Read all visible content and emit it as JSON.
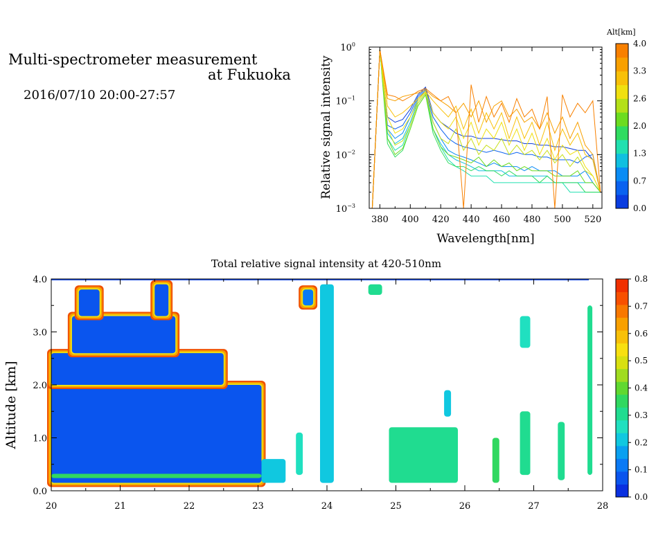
{
  "header": {
    "title_line1": "Multi-spectrometer measurement",
    "title_line2": "at Fukuoka",
    "subtitle": "2016/07/10 20:00-27:57"
  },
  "chart_data": [
    {
      "type": "line",
      "title": "",
      "xlabel": "Wavelength[nm]",
      "ylabel": "Relative signal intensity",
      "xlim": [
        373,
        526
      ],
      "ylim": [
        0.001,
        1
      ],
      "yscale": "log",
      "x_ticks": [
        380,
        400,
        420,
        440,
        460,
        480,
        500,
        520
      ],
      "y_tick_labels": [
        {
          "base": "10",
          "exp": "0",
          "value": 1
        },
        {
          "base": "10",
          "exp": "−1",
          "value": 0.1
        },
        {
          "base": "10",
          "exp": "−2",
          "value": 0.01
        },
        {
          "base": "10",
          "exp": "−3",
          "value": 0.001
        }
      ],
      "colorbar": {
        "label": "Alt[km]",
        "ticks": [
          "0.0",
          "0.7",
          "1.3",
          "2.0",
          "2.6",
          "3.3",
          "4.0"
        ],
        "colors": [
          "#0a3de0",
          "#0a62f0",
          "#0a8cf5",
          "#10bfe0",
          "#20e0b0",
          "#30dc60",
          "#6cdc20",
          "#b4e018",
          "#f0e010",
          "#f8c008",
          "#f8a000",
          "#f88000"
        ]
      },
      "x": [
        375,
        380,
        385,
        390,
        395,
        400,
        405,
        410,
        415,
        420,
        425,
        430,
        435,
        440,
        445,
        450,
        455,
        460,
        465,
        470,
        475,
        480,
        485,
        490,
        495,
        500,
        505,
        510,
        515,
        520,
        525
      ],
      "series": [
        {
          "altitude_km": 0.3,
          "color": "#1040d8",
          "values": [
            0.001,
            0.9,
            0.05,
            0.04,
            0.045,
            0.07,
            0.13,
            0.18,
            0.06,
            0.04,
            0.032,
            0.025,
            0.022,
            0.022,
            0.02,
            0.02,
            0.02,
            0.019,
            0.018,
            0.018,
            0.016,
            0.016,
            0.015,
            0.015,
            0.014,
            0.014,
            0.013,
            0.012,
            0.012,
            0.008,
            0.002
          ]
        },
        {
          "altitude_km": 0.5,
          "color": "#0a62f0",
          "values": [
            0.001,
            0.9,
            0.035,
            0.03,
            0.035,
            0.06,
            0.12,
            0.17,
            0.05,
            0.03,
            0.02,
            0.016,
            0.014,
            0.013,
            0.012,
            0.011,
            0.012,
            0.011,
            0.01,
            0.011,
            0.01,
            0.01,
            0.009,
            0.009,
            0.008,
            0.008,
            0.008,
            0.007,
            0.009,
            0.01,
            0.002
          ]
        },
        {
          "altitude_km": 0.8,
          "color": "#0a8cf5",
          "values": [
            0.001,
            0.9,
            0.03,
            0.02,
            0.025,
            0.05,
            0.11,
            0.16,
            0.04,
            0.02,
            0.012,
            0.01,
            0.009,
            0.008,
            0.007,
            0.006,
            0.007,
            0.006,
            0.006,
            0.006,
            0.005,
            0.006,
            0.005,
            0.005,
            0.005,
            0.004,
            0.004,
            0.004,
            0.005,
            0.003,
            0.002
          ]
        },
        {
          "altitude_km": 1.1,
          "color": "#10bfe0",
          "values": [
            0.001,
            0.9,
            0.025,
            0.016,
            0.02,
            0.04,
            0.1,
            0.15,
            0.03,
            0.016,
            0.01,
            0.008,
            0.007,
            0.006,
            0.005,
            0.005,
            0.005,
            0.005,
            0.004,
            0.004,
            0.004,
            0.004,
            0.004,
            0.004,
            0.003,
            0.003,
            0.003,
            0.003,
            0.003,
            0.003,
            0.002
          ]
        },
        {
          "altitude_km": 1.4,
          "color": "#20e0b0",
          "values": [
            0.001,
            0.9,
            0.02,
            0.012,
            0.015,
            0.035,
            0.09,
            0.14,
            0.03,
            0.014,
            0.008,
            0.006,
            0.005,
            0.004,
            0.004,
            0.004,
            0.003,
            0.003,
            0.003,
            0.003,
            0.003,
            0.003,
            0.003,
            0.003,
            0.003,
            0.003,
            0.002,
            0.002,
            0.002,
            0.002,
            0.002
          ]
        },
        {
          "altitude_km": 1.7,
          "color": "#30dc60",
          "values": [
            0.001,
            0.9,
            0.016,
            0.009,
            0.012,
            0.03,
            0.08,
            0.13,
            0.025,
            0.012,
            0.007,
            0.006,
            0.006,
            0.005,
            0.006,
            0.005,
            0.005,
            0.004,
            0.005,
            0.004,
            0.004,
            0.004,
            0.003,
            0.004,
            0.003,
            0.003,
            0.003,
            0.003,
            0.002,
            0.002,
            0.002
          ]
        },
        {
          "altitude_km": 2.1,
          "color": "#6cdc20",
          "values": [
            0.001,
            0.9,
            0.02,
            0.01,
            0.013,
            0.03,
            0.08,
            0.13,
            0.03,
            0.014,
            0.01,
            0.009,
            0.008,
            0.007,
            0.009,
            0.006,
            0.008,
            0.006,
            0.007,
            0.005,
            0.006,
            0.005,
            0.005,
            0.005,
            0.004,
            0.004,
            0.004,
            0.005,
            0.003,
            0.003,
            0.002
          ]
        },
        {
          "altitude_km": 2.5,
          "color": "#c8e018",
          "values": [
            0.001,
            0.9,
            0.03,
            0.015,
            0.018,
            0.035,
            0.09,
            0.14,
            0.04,
            0.02,
            0.016,
            0.03,
            0.012,
            0.02,
            0.01,
            0.015,
            0.012,
            0.02,
            0.01,
            0.015,
            0.01,
            0.012,
            0.008,
            0.012,
            0.007,
            0.01,
            0.006,
            0.009,
            0.005,
            0.004,
            0.002
          ]
        },
        {
          "altitude_km": 2.9,
          "color": "#f0e010",
          "values": [
            0.001,
            0.9,
            0.05,
            0.025,
            0.03,
            0.05,
            0.1,
            0.15,
            0.06,
            0.04,
            0.03,
            0.05,
            0.02,
            0.04,
            0.015,
            0.03,
            0.02,
            0.04,
            0.015,
            0.03,
            0.012,
            0.025,
            0.01,
            0.02,
            0.008,
            0.015,
            0.01,
            0.012,
            0.006,
            0.004,
            0.002
          ]
        },
        {
          "altitude_km": 3.3,
          "color": "#f8c008",
          "values": [
            0.001,
            0.9,
            0.08,
            0.05,
            0.06,
            0.08,
            0.11,
            0.15,
            0.1,
            0.07,
            0.05,
            0.08,
            0.03,
            0.07,
            0.025,
            0.06,
            0.03,
            0.06,
            0.02,
            0.05,
            0.02,
            0.04,
            0.015,
            0.04,
            0.012,
            0.03,
            0.015,
            0.025,
            0.01,
            0.008,
            0.002
          ]
        },
        {
          "altitude_km": 3.6,
          "color": "#f8a000",
          "values": [
            0.001,
            0.9,
            0.11,
            0.1,
            0.12,
            0.13,
            0.14,
            0.16,
            0.12,
            0.1,
            0.08,
            0.06,
            0.09,
            0.05,
            0.1,
            0.04,
            0.08,
            0.1,
            0.05,
            0.07,
            0.04,
            0.05,
            0.03,
            0.06,
            0.025,
            0.05,
            0.02,
            0.04,
            0.015,
            0.01,
            0.002
          ]
        },
        {
          "altitude_km": 3.9,
          "color": "#f88000",
          "values": [
            0.001,
            0.9,
            0.13,
            0.12,
            0.1,
            0.12,
            0.15,
            0.17,
            0.13,
            0.1,
            0.12,
            0.06,
            0.001,
            0.2,
            0.04,
            0.12,
            0.05,
            0.09,
            0.04,
            0.11,
            0.05,
            0.07,
            0.03,
            0.12,
            0.001,
            0.13,
            0.05,
            0.09,
            0.06,
            0.1,
            0.002
          ]
        }
      ]
    },
    {
      "type": "heatmap",
      "title": "Total relative signal intensity at 420-510nm",
      "xlabel": "",
      "ylabel": "Altitude [km]",
      "xlim": [
        20,
        28
      ],
      "ylim": [
        0,
        4
      ],
      "x_ticks": [
        "20",
        "21",
        "22",
        "23",
        "24",
        "25",
        "26",
        "27",
        "28"
      ],
      "y_ticks": [
        "0.0",
        "1.0",
        "2.0",
        "3.0",
        "4.0"
      ],
      "colorbar": {
        "ticks": [
          "0.0",
          "0.1",
          "0.2",
          "0.3",
          "0.4",
          "0.5",
          "0.6",
          "0.7",
          "0.8"
        ],
        "colors": [
          "#0a30e0",
          "#0a55ee",
          "#0a7af5",
          "#0aa0f0",
          "#10c8e0",
          "#20e0c0",
          "#20dc90",
          "#30d860",
          "#60d830",
          "#a0dc20",
          "#d8e010",
          "#f8e010",
          "#f8c008",
          "#f8a000",
          "#f87800",
          "#f85000",
          "#f03000"
        ]
      },
      "data_window": {
        "x_end": 27.8,
        "y_start": 0.15
      },
      "base_level": 0.15,
      "regions": [
        {
          "x": [
            20.0,
            23.05
          ],
          "y": [
            0.15,
            2.0
          ],
          "value": 0.05
        },
        {
          "x": [
            20.0,
            22.5
          ],
          "y": [
            2.0,
            2.6
          ],
          "value": 0.05
        },
        {
          "x": [
            20.3,
            21.8
          ],
          "y": [
            2.6,
            3.3
          ],
          "value": 0.05
        },
        {
          "x": [
            20.4,
            20.7
          ],
          "y": [
            3.3,
            3.8
          ],
          "value": 0.06
        },
        {
          "x": [
            21.5,
            21.7
          ],
          "y": [
            3.3,
            3.9
          ],
          "value": 0.06
        },
        {
          "x": [
            20.0,
            23.05
          ],
          "y": [
            0.24,
            0.32
          ],
          "value": 0.35
        },
        {
          "x": [
            23.05,
            23.4
          ],
          "y": [
            0.15,
            0.6
          ],
          "value": 0.2
        },
        {
          "x": [
            23.55,
            23.65
          ],
          "y": [
            0.3,
            1.1
          ],
          "value": 0.25
        },
        {
          "x": [
            23.9,
            24.1
          ],
          "y": [
            0.15,
            3.9
          ],
          "value": 0.2
        },
        {
          "x": [
            24.9,
            25.9
          ],
          "y": [
            0.15,
            1.2
          ],
          "value": 0.3
        },
        {
          "x": [
            25.7,
            25.8
          ],
          "y": [
            1.4,
            1.9
          ],
          "value": 0.2
        },
        {
          "x": [
            26.4,
            26.5
          ],
          "y": [
            0.15,
            1.0
          ],
          "value": 0.35
        },
        {
          "x": [
            26.8,
            26.95
          ],
          "y": [
            0.3,
            1.5
          ],
          "value": 0.3
        },
        {
          "x": [
            27.35,
            27.45
          ],
          "y": [
            0.2,
            1.3
          ],
          "value": 0.3
        },
        {
          "x": [
            27.78,
            27.85
          ],
          "y": [
            0.3,
            3.5
          ],
          "value": 0.3
        },
        {
          "x": [
            26.8,
            26.95
          ],
          "y": [
            2.7,
            3.3
          ],
          "value": 0.25
        },
        {
          "x": [
            23.65,
            23.8
          ],
          "y": [
            3.5,
            3.8
          ],
          "value": 0.1
        },
        {
          "x": [
            24.6,
            24.8
          ],
          "y": [
            3.7,
            3.9
          ],
          "value": 0.3
        }
      ]
    }
  ]
}
